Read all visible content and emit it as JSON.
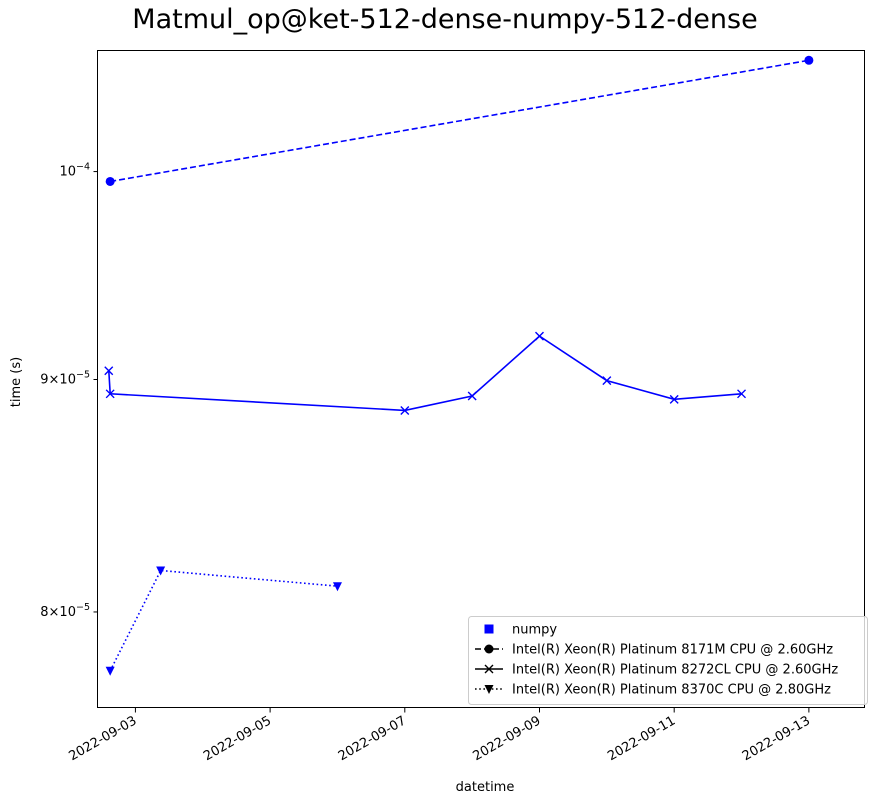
{
  "chart_data": {
    "type": "line",
    "title": "Matmul_op@ket-512-dense-numpy-512-dense",
    "xlabel": "datetime",
    "ylabel": "time (s)",
    "y_scale": "log",
    "xlim": [
      "2022-09-02T10:40",
      "2022-09-13T20:00"
    ],
    "ylim": [
      7.62e-05,
      0.0001063
    ],
    "x_ticks": [
      "2022-09-03",
      "2022-09-05",
      "2022-09-07",
      "2022-09-09",
      "2022-09-11",
      "2022-09-13"
    ],
    "y_ticks": [
      {
        "value": 8e-05,
        "mantissa": "8×10",
        "exponent": "−5"
      },
      {
        "value": 9e-05,
        "mantissa": "9×10",
        "exponent": "−5"
      },
      {
        "value": 0.0001,
        "mantissa": "10",
        "exponent": "−4"
      }
    ],
    "grid": false,
    "legend_position": "bottom-right",
    "series": [
      {
        "name": "Intel(R) Xeon(R) Platinum 8171M CPU @ 2.60GHz",
        "color": "#0000ff",
        "linestyle": "dashed",
        "marker": "circle",
        "points": [
          {
            "x": "2022-09-02T15:00",
            "y": 9.95e-05
          },
          {
            "x": "2022-09-13T00:00",
            "y": 0.0001058
          }
        ]
      },
      {
        "name": "Intel(R) Xeon(R) Platinum 8272CL CPU @ 2.60GHz",
        "color": "#0000ff",
        "linestyle": "solid",
        "marker": "x",
        "points": [
          {
            "x": "2022-09-02T14:30",
            "y": 9.04e-05
          },
          {
            "x": "2022-09-02T15:00",
            "y": 8.935e-05
          },
          {
            "x": "2022-09-07T00:00",
            "y": 8.86e-05
          },
          {
            "x": "2022-09-08T00:00",
            "y": 8.925e-05
          },
          {
            "x": "2022-09-09T00:00",
            "y": 9.2e-05
          },
          {
            "x": "2022-09-10T00:00",
            "y": 8.995e-05
          },
          {
            "x": "2022-09-11T00:00",
            "y": 8.91e-05
          },
          {
            "x": "2022-09-12T00:00",
            "y": 8.935e-05
          }
        ]
      },
      {
        "name": "Intel(R) Xeon(R) Platinum 8370C CPU @ 2.80GHz",
        "color": "#0000ff",
        "linestyle": "dotted",
        "marker": "triangle-down",
        "points": [
          {
            "x": "2022-09-02T15:00",
            "y": 7.765e-05
          },
          {
            "x": "2022-09-03T09:00",
            "y": 8.17e-05
          },
          {
            "x": "2022-09-06T00:00",
            "y": 8.105e-05
          }
        ]
      }
    ],
    "legend": [
      {
        "label": "numpy",
        "marker": "square",
        "linestyle": "none"
      },
      {
        "label": "Intel(R) Xeon(R) Platinum 8171M CPU @ 2.60GHz",
        "marker": "circle",
        "linestyle": "dashed"
      },
      {
        "label": "Intel(R) Xeon(R) Platinum 8272CL CPU @ 2.60GHz",
        "marker": "x",
        "linestyle": "solid"
      },
      {
        "label": "Intel(R) Xeon(R) Platinum 8370C CPU @ 2.80GHz",
        "marker": "triangle-down",
        "linestyle": "dotted"
      }
    ]
  }
}
